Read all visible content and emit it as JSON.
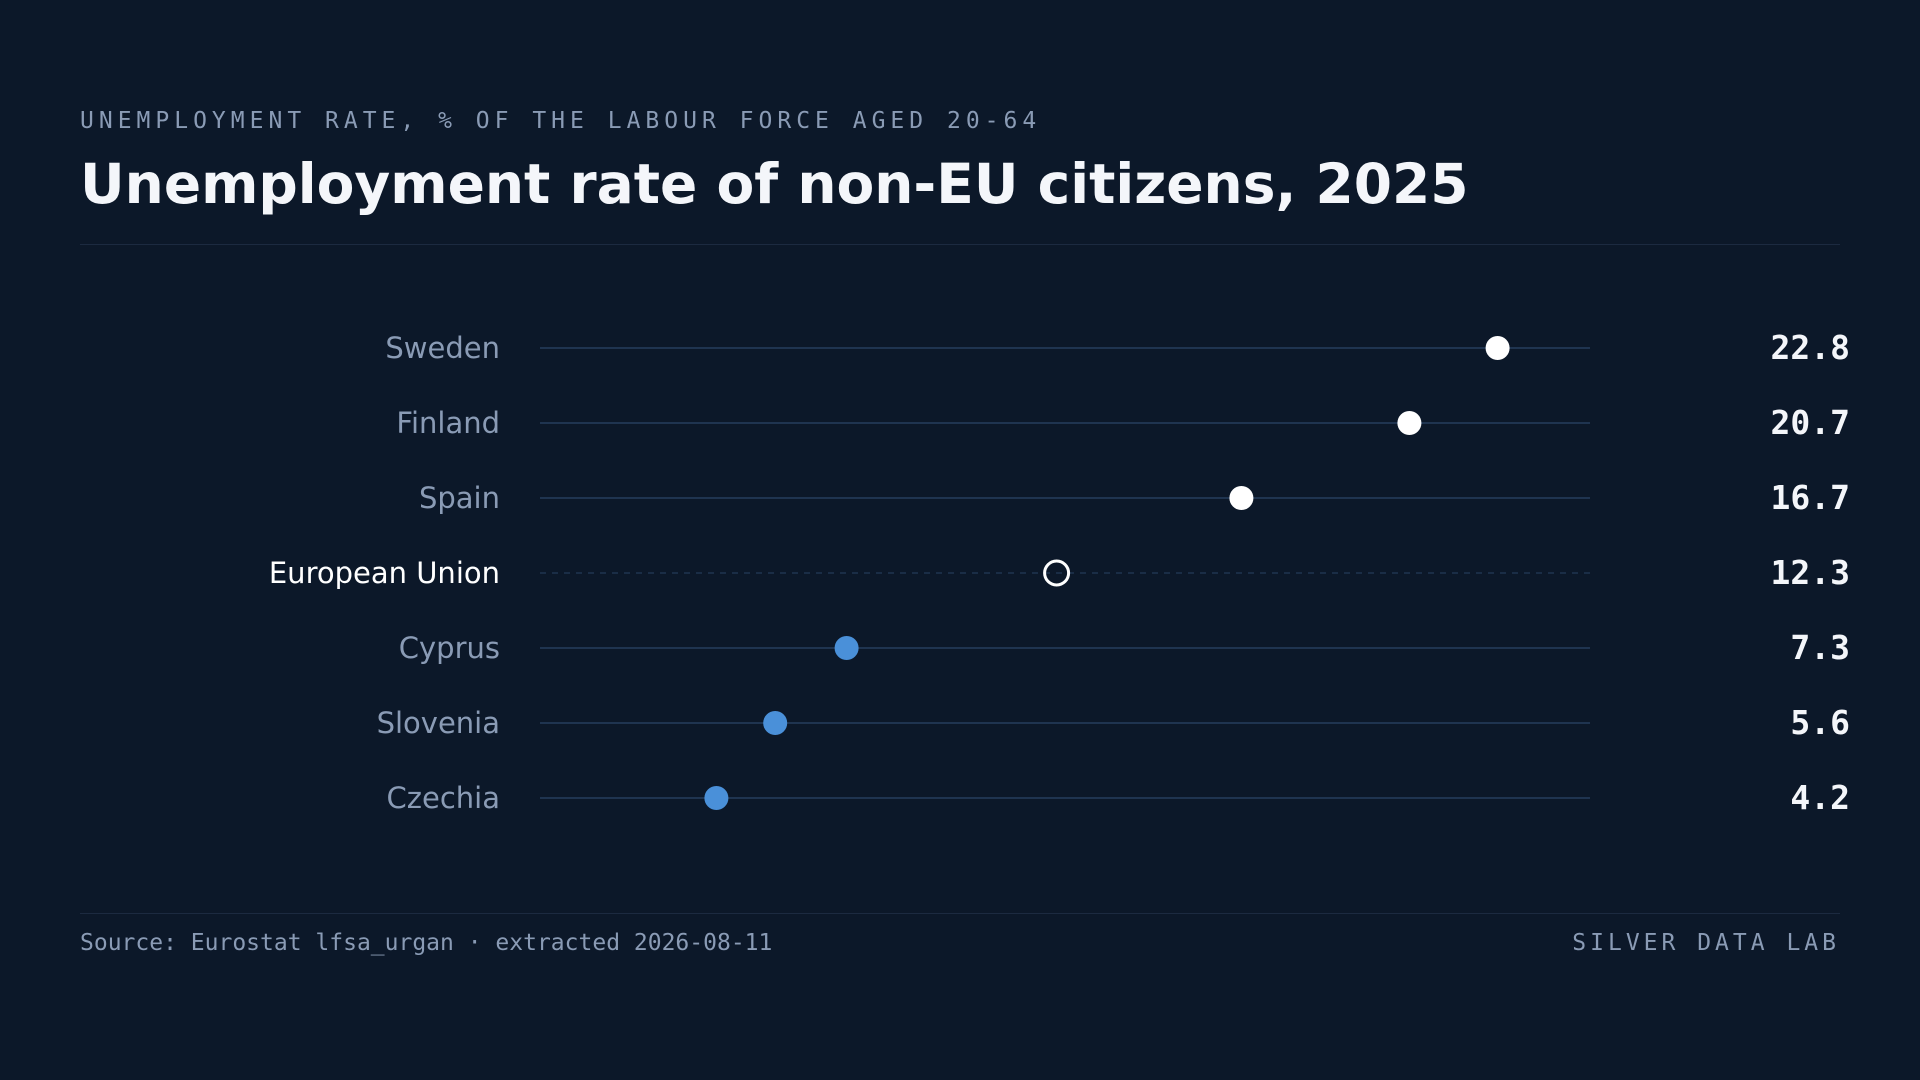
{
  "header": {
    "kicker": "UNEMPLOYMENT RATE, % OF THE LABOUR FORCE AGED 20-64",
    "title": "Unemployment rate of non-EU citizens, 2025"
  },
  "footer": {
    "source": "Source: Eurostat lfsa_urgan · extracted 2026-08-11",
    "brand": "SILVER DATA LAB"
  },
  "colors": {
    "background": "#0c1829",
    "above_eu": "#ffffff",
    "below_eu": "#4a90d9",
    "reference_label": "#ffffff",
    "label": "#8a9bb5",
    "value": "#f4f6fa",
    "track": "#1f3450"
  },
  "chart_data": {
    "type": "dot",
    "title": "Unemployment rate of non-EU citizens, 2025",
    "xlabel": "",
    "ylabel": "",
    "xlim": [
      0,
      25
    ],
    "grid": false,
    "reference": "European Union",
    "categories": [
      "Sweden",
      "Finland",
      "Spain",
      "European Union",
      "Cyprus",
      "Slovenia",
      "Czechia"
    ],
    "values": [
      22.8,
      20.7,
      16.7,
      12.3,
      7.3,
      5.6,
      4.2
    ],
    "value_labels": [
      "22.8",
      "20.7",
      "16.7",
      "12.3",
      "7.3",
      "5.6",
      "4.2"
    ]
  }
}
